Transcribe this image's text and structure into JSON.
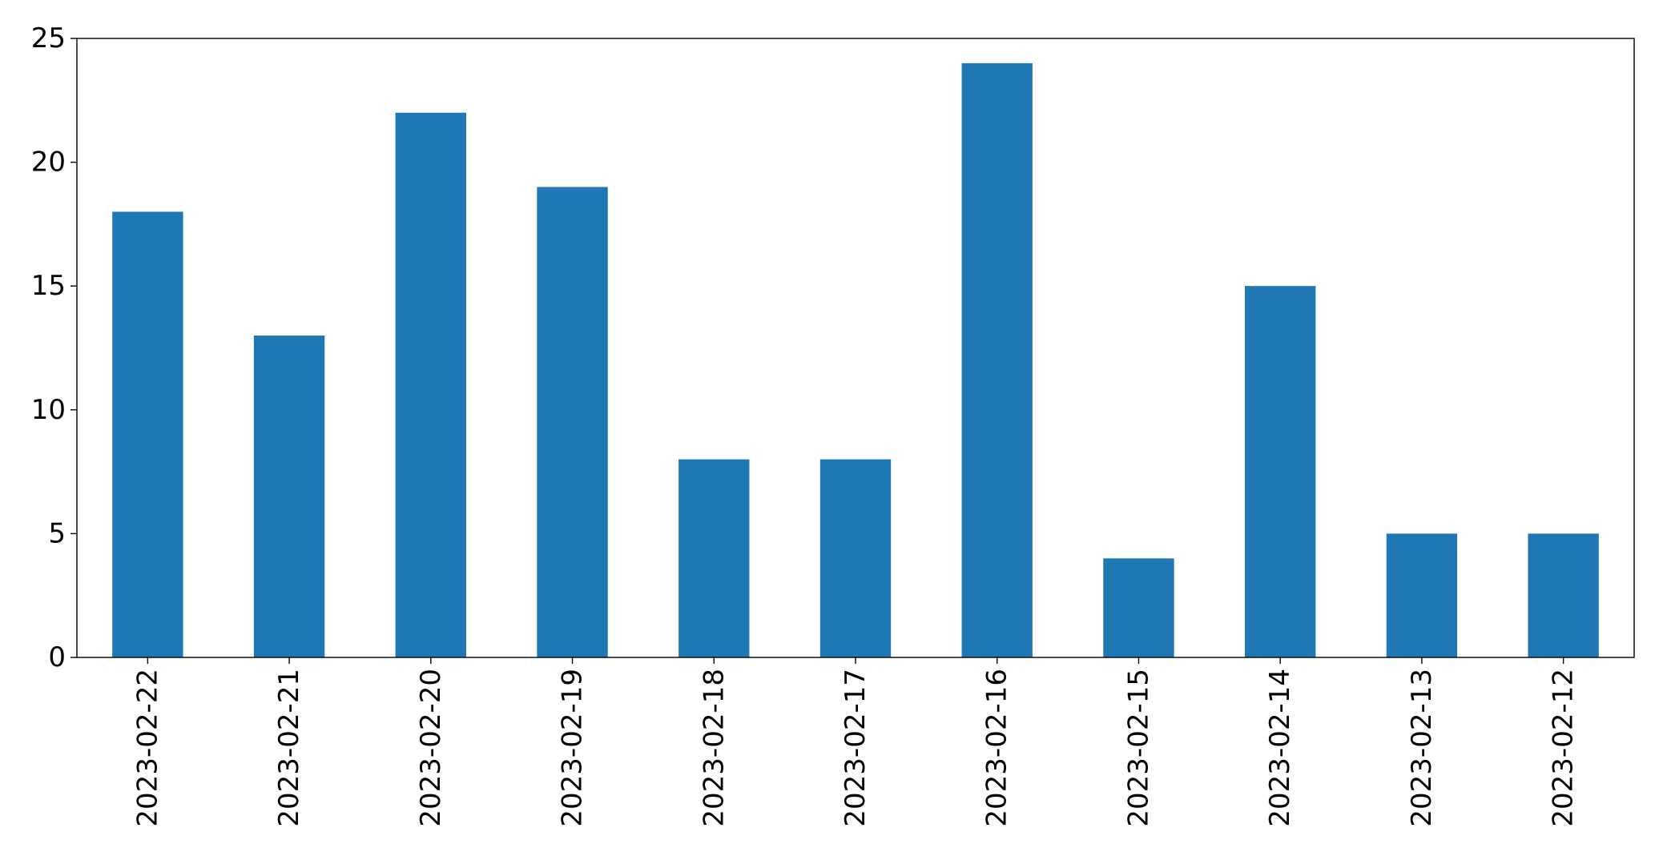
{
  "chart_data": {
    "type": "bar",
    "title": "",
    "xlabel": "",
    "ylabel": "",
    "categories": [
      "2023-02-22",
      "2023-02-21",
      "2023-02-20",
      "2023-02-19",
      "2023-02-18",
      "2023-02-17",
      "2023-02-16",
      "2023-02-15",
      "2023-02-14",
      "2023-02-13",
      "2023-02-12"
    ],
    "values": [
      18,
      13,
      22,
      19,
      8,
      8,
      24,
      4,
      15,
      5,
      5
    ],
    "ylim": [
      0,
      25
    ],
    "yticks": [
      0,
      5,
      10,
      15,
      20,
      25
    ],
    "grid": false,
    "bar_color": "#1f77b4",
    "xtick_rotation": "vertical"
  }
}
